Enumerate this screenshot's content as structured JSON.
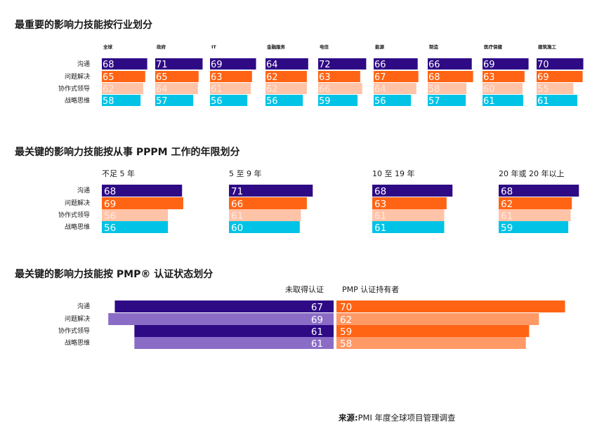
{
  "colors": {
    "communication": "#2e0a85",
    "problem_solving": "#ff6414",
    "collaborative_leadership": "#ffc3a8",
    "strategic_thinking": "#00c3e6",
    "not_certified_dark": "#2e0a85",
    "not_certified_light": "#8a6cc7",
    "certified_dark": "#ff6414",
    "certified_light": "#ff9966"
  },
  "source": {
    "label": "来源:",
    "text": "PMI 年度全球项目管理调查"
  },
  "chart_data": [
    {
      "type": "bar",
      "title": "最重要的影响力技能按行业划分",
      "skills": [
        "沟通",
        "问题解决",
        "协作式领导",
        "战略思维"
      ],
      "categories": [
        "全球",
        "政府",
        "IT",
        "金融服务",
        "电信",
        "能源",
        "制造",
        "医疗保健",
        "建筑施工"
      ],
      "series": [
        {
          "name": "沟通",
          "values": [
            68,
            71,
            69,
            64,
            72,
            66,
            66,
            69,
            70
          ]
        },
        {
          "name": "问题解决",
          "values": [
            65,
            65,
            63,
            62,
            63,
            67,
            68,
            63,
            69
          ]
        },
        {
          "name": "协作式领导",
          "values": [
            62,
            64,
            61,
            62,
            66,
            64,
            58,
            60,
            55
          ]
        },
        {
          "name": "战略思维",
          "values": [
            58,
            57,
            56,
            56,
            59,
            56,
            57,
            61,
            61
          ]
        }
      ]
    },
    {
      "type": "bar",
      "title": "最关键的影响力技能按从事 PPPM 工作的年限划分",
      "skills": [
        "沟通",
        "问题解决",
        "协作式领导",
        "战略思维"
      ],
      "categories": [
        "不足 5 年",
        "5 至 9 年",
        "10 至 19 年",
        "20 年或 20 年以上"
      ],
      "series": [
        {
          "name": "沟通",
          "values": [
            68,
            71,
            68,
            68
          ]
        },
        {
          "name": "问题解决",
          "values": [
            69,
            66,
            63,
            62
          ]
        },
        {
          "name": "协作式领导",
          "values": [
            56,
            61,
            61,
            61
          ]
        },
        {
          "name": "战略思维",
          "values": [
            56,
            60,
            61,
            59
          ]
        }
      ]
    },
    {
      "type": "bar",
      "title": "最关键的影响力技能按 PMP® 认证状态划分",
      "categories": [
        "沟通",
        "问题解决",
        "协作式领导",
        "战略思维"
      ],
      "series": [
        {
          "name": "未取得认证",
          "values": [
            67,
            69,
            61,
            61
          ]
        },
        {
          "name": "PMP 认证持有者",
          "values": [
            70,
            62,
            59,
            58
          ]
        }
      ]
    }
  ]
}
